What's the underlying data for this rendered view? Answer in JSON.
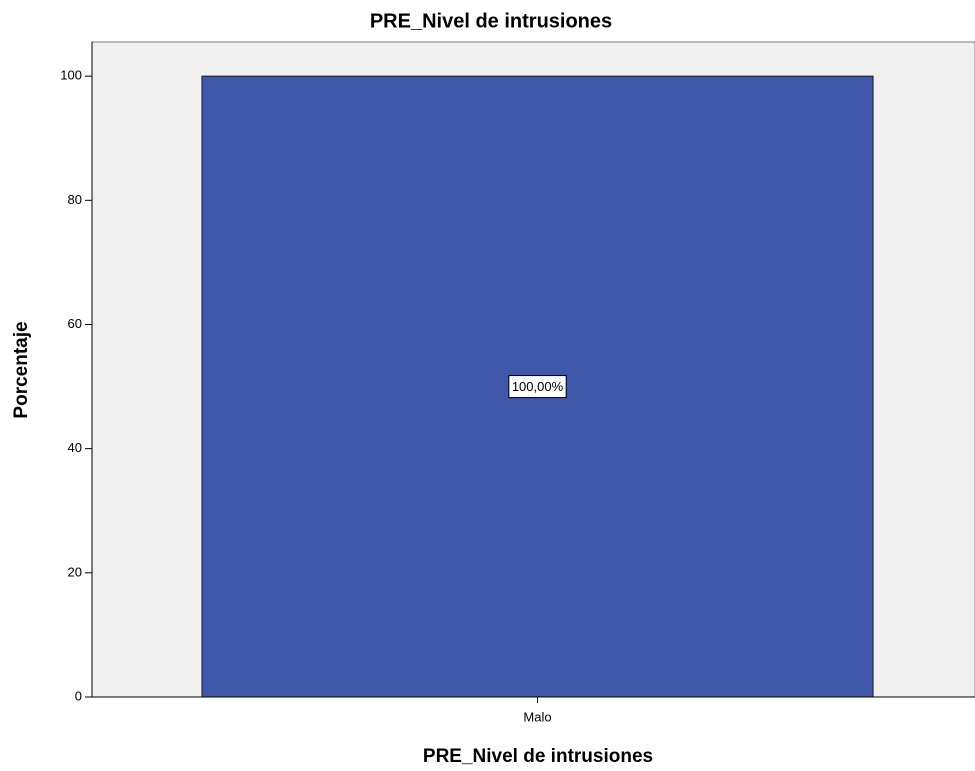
{
  "chart_data": {
    "type": "bar",
    "title": "PRE_Nivel de intrusiones",
    "x_label": "PRE_Nivel de intrusiones",
    "y_label": "Porcentaje",
    "categories": [
      "Malo"
    ],
    "values": [
      100
    ],
    "value_labels": [
      "100,00%"
    ],
    "color": "#3f57a9",
    "ylim": [
      0,
      105.5
    ],
    "yticks": [
      0,
      20,
      40,
      60,
      80,
      100
    ],
    "grid": false
  }
}
